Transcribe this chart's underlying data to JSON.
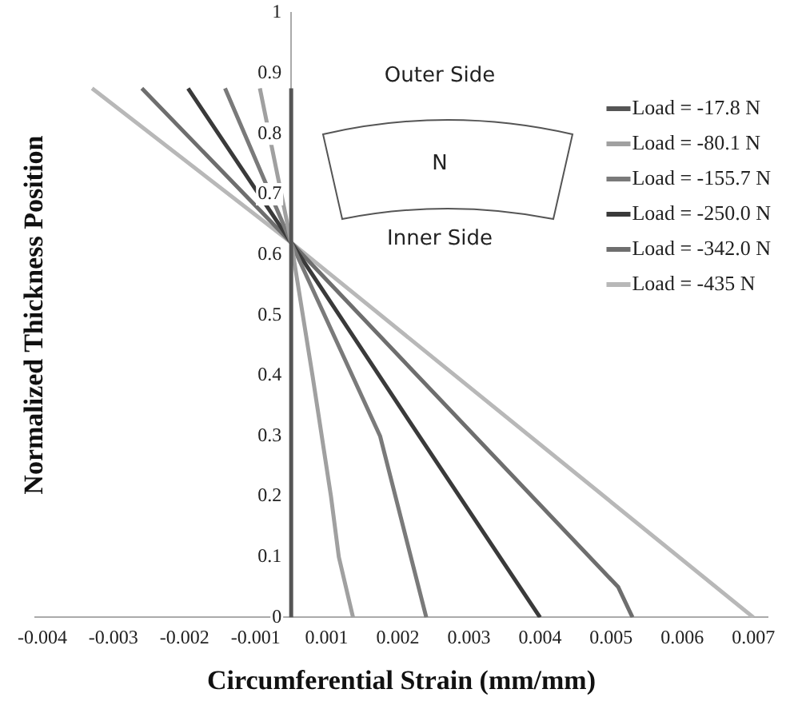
{
  "chart_data": {
    "type": "line",
    "xlabel": "Circumferential Strain (mm/mm)",
    "ylabel": "Normalized Thickness Position",
    "xlim": [
      -0.0036,
      0.0067
    ],
    "xticks": [
      {
        "value": -0.0035,
        "label": "-0.004"
      },
      {
        "value": -0.0025,
        "label": "-0.003"
      },
      {
        "value": -0.0015,
        "label": "-0.002"
      },
      {
        "value": -0.0005,
        "label": "-0.001"
      },
      {
        "value": 0.0005,
        "label": "0.001"
      },
      {
        "value": 0.0015,
        "label": "0.002"
      },
      {
        "value": 0.0025,
        "label": "0.003"
      },
      {
        "value": 0.0035,
        "label": "0.004"
      },
      {
        "value": 0.0045,
        "label": "0.005"
      },
      {
        "value": 0.0055,
        "label": "0.006"
      },
      {
        "value": 0.0065,
        "label": "0.007"
      }
    ],
    "ylim": [
      0,
      1
    ],
    "yticks": [
      0,
      0.1,
      0.2,
      0.3,
      0.4,
      0.5,
      0.6,
      0.7,
      0.8,
      0.9,
      1
    ],
    "grid": false,
    "legend": "top right",
    "marker": "none",
    "line_style": "solid",
    "annotations": [
      "Outer Side",
      "N",
      "Inner Side"
    ],
    "series": [
      {
        "name": "Load = -17.8 N",
        "color": "#555555",
        "x": [
          0,
          0
        ],
        "values": [
          0,
          0.875
        ]
      },
      {
        "name": "Load = -80.1 N",
        "color": "#a0a0a0",
        "x": [
          -0.00044,
          0,
          0.0003,
          0.00056,
          0.00067,
          0.00087
        ],
        "values": [
          0.875,
          0.62,
          0.4,
          0.2,
          0.1,
          0
        ]
      },
      {
        "name": "Load = -155.7 N",
        "color": "#7a7a7a",
        "x": [
          -0.00093,
          0,
          0.00125,
          0.0019
        ],
        "values": [
          0.875,
          0.62,
          0.3,
          0
        ]
      },
      {
        "name": "Load = -250.0 N",
        "color": "#3a3a3a",
        "x": [
          -0.00145,
          0,
          0.0018,
          0.0035
        ],
        "values": [
          0.875,
          0.62,
          0.3,
          0
        ]
      },
      {
        "name": "Load = -342.0 N",
        "color": "#6e6e6e",
        "x": [
          -0.0021,
          0,
          0.0046,
          0.0048
        ],
        "values": [
          0.875,
          0.62,
          0.05,
          0
        ]
      },
      {
        "name": "Load = -435 N",
        "color": "#b8b8b8",
        "x": [
          -0.0028,
          0,
          0.0065
        ],
        "values": [
          0.875,
          0.62,
          0
        ]
      }
    ]
  }
}
